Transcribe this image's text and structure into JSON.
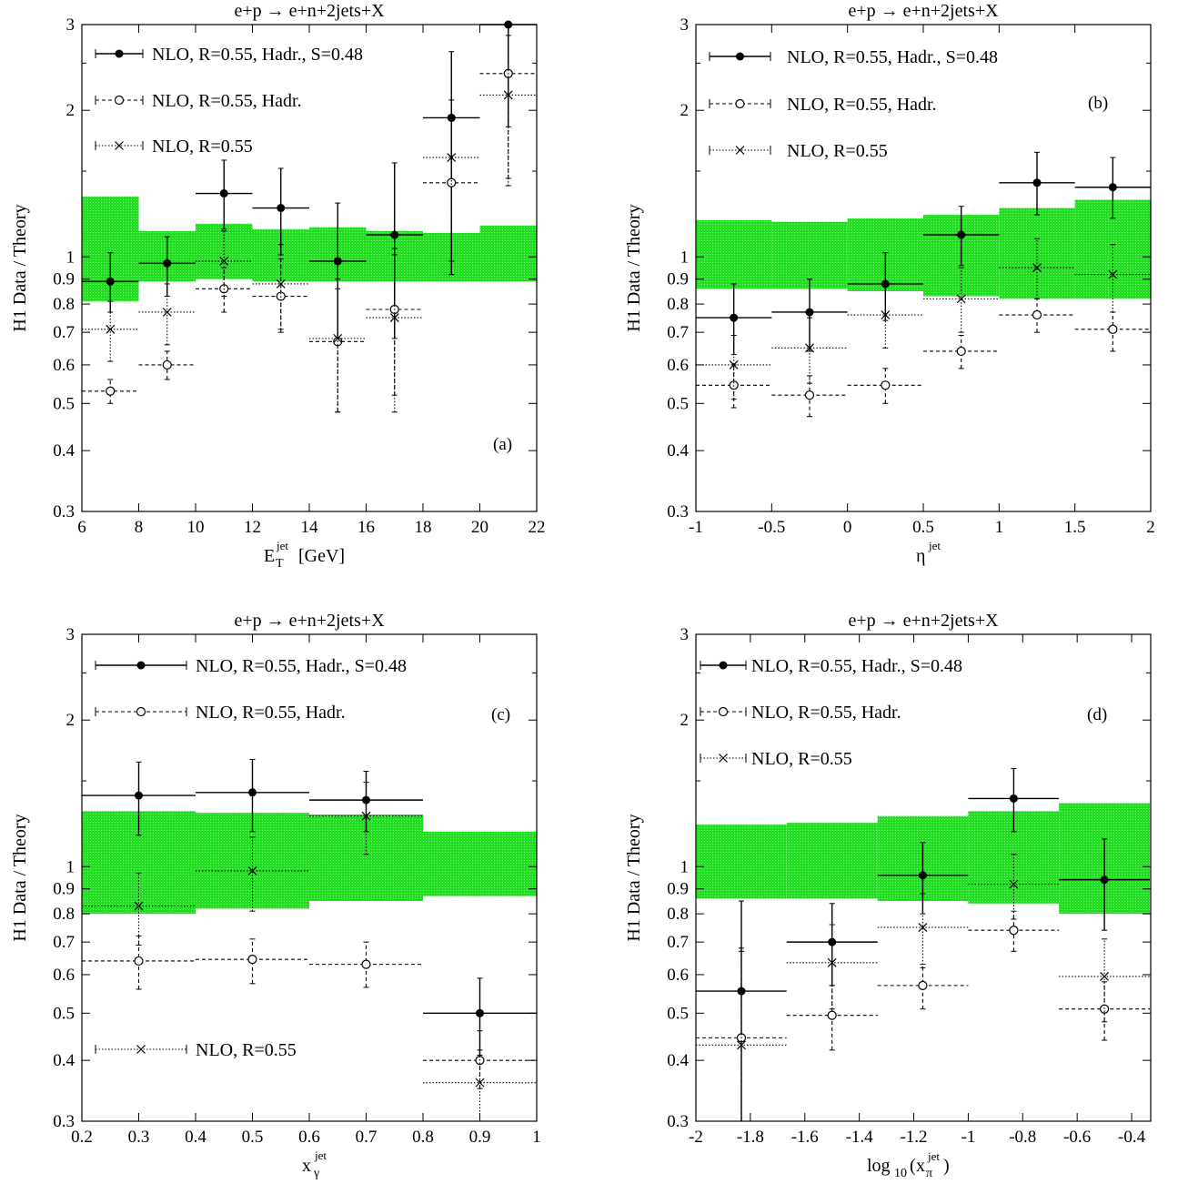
{
  "chart_data": [
    {
      "panel": "(a)",
      "type": "scatter",
      "title": "e+p → e+n+2jets+X",
      "xlabel": {
        "main": "E",
        "sub": "T",
        "sup": "jet",
        "unit": "[GeV]"
      },
      "ylabel": "H1 Data / Theory",
      "xlim": [
        6,
        22
      ],
      "ylim": [
        0.3,
        3
      ],
      "yscale": "log",
      "xticks": [
        "6",
        "8",
        "10",
        "12",
        "14",
        "16",
        "18",
        "20",
        "22"
      ],
      "yticks": [
        "0.3",
        "0.4",
        "0.5",
        "0.6",
        "0.7",
        "0.8",
        "0.9",
        "1",
        "2",
        "3"
      ],
      "band": [
        {
          "x0": 6,
          "x1": 8,
          "lo": 0.81,
          "hi": 1.33
        },
        {
          "x0": 8,
          "x1": 10,
          "lo": 0.89,
          "hi": 1.13
        },
        {
          "x0": 10,
          "x1": 12,
          "lo": 0.9,
          "hi": 1.17
        },
        {
          "x0": 12,
          "x1": 14,
          "lo": 0.89,
          "hi": 1.14
        },
        {
          "x0": 14,
          "x1": 16,
          "lo": 0.89,
          "hi": 1.15
        },
        {
          "x0": 16,
          "x1": 18,
          "lo": 0.89,
          "hi": 1.13
        },
        {
          "x0": 18,
          "x1": 20,
          "lo": 0.89,
          "hi": 1.12
        },
        {
          "x0": 20,
          "x1": 22,
          "lo": 0.89,
          "hi": 1.16
        }
      ],
      "series": [
        {
          "name": "NLO, R=0.55, Hadr., S=0.48",
          "marker": "filled",
          "line": "solid",
          "points": [
            {
              "x": 7,
              "y": 0.89,
              "ylo": 0.77,
              "yhi": 1.02
            },
            {
              "x": 9,
              "y": 0.97,
              "ylo": 0.83,
              "yhi": 1.1
            },
            {
              "x": 11,
              "y": 1.35,
              "ylo": 1.14,
              "yhi": 1.58
            },
            {
              "x": 13,
              "y": 1.26,
              "ylo": 1.01,
              "yhi": 1.52
            },
            {
              "x": 15,
              "y": 0.98,
              "ylo": 0.68,
              "yhi": 1.29
            },
            {
              "x": 17,
              "y": 1.11,
              "ylo": 0.68,
              "yhi": 1.56
            },
            {
              "x": 19,
              "y": 1.93,
              "ylo": 0.92,
              "yhi": 2.64
            },
            {
              "x": 21,
              "y": 3.05,
              "ylo": 1.85,
              "yhi": 3.05
            }
          ]
        },
        {
          "name": "NLO, R=0.55, Hadr.",
          "marker": "open",
          "line": "dashed",
          "points": [
            {
              "x": 7,
              "y": 0.53,
              "ylo": 0.5,
              "yhi": 0.56
            },
            {
              "x": 9,
              "y": 0.6,
              "ylo": 0.56,
              "yhi": 0.64
            },
            {
              "x": 11,
              "y": 0.86,
              "ylo": 0.77,
              "yhi": 0.95
            },
            {
              "x": 13,
              "y": 0.83,
              "ylo": 0.7,
              "yhi": 0.99
            },
            {
              "x": 15,
              "y": 0.67,
              "ylo": 0.48,
              "yhi": 0.86
            },
            {
              "x": 17,
              "y": 0.78,
              "ylo": 0.52,
              "yhi": 1.04
            },
            {
              "x": 19,
              "y": 1.42,
              "ylo": 0.92,
              "yhi": 1.93
            },
            {
              "x": 21,
              "y": 2.38,
              "ylo": 1.45,
              "yhi": 3.05
            }
          ]
        },
        {
          "name": "NLO, R=0.55",
          "marker": "cross",
          "line": "dotted",
          "points": [
            {
              "x": 7,
              "y": 0.71,
              "ylo": 0.61,
              "yhi": 0.81
            },
            {
              "x": 9,
              "y": 0.77,
              "ylo": 0.66,
              "yhi": 0.88
            },
            {
              "x": 11,
              "y": 0.98,
              "ylo": 0.83,
              "yhi": 1.13
            },
            {
              "x": 13,
              "y": 0.88,
              "ylo": 0.71,
              "yhi": 1.06
            },
            {
              "x": 15,
              "y": 0.68,
              "ylo": 0.48,
              "yhi": 0.9
            },
            {
              "x": 17,
              "y": 0.75,
              "ylo": 0.48,
              "yhi": 1.01
            },
            {
              "x": 19,
              "y": 1.6,
              "ylo": 0.98,
              "yhi": 2.1
            },
            {
              "x": 21,
              "y": 2.15,
              "ylo": 1.4,
              "yhi": 2.85
            }
          ]
        }
      ]
    },
    {
      "panel": "(b)",
      "type": "scatter",
      "title": "e+p → e+n+2jets+X",
      "xlabel": {
        "main": "η",
        "sub": "",
        "sup": "jet",
        "unit": ""
      },
      "ylabel": "H1 Data / Theory",
      "xlim": [
        -1,
        2
      ],
      "ylim": [
        0.3,
        3
      ],
      "yscale": "log",
      "xticks": [
        "-1",
        "-0.5",
        "0",
        "0.5",
        "1",
        "1.5",
        "2"
      ],
      "yticks": [
        "0.3",
        "0.4",
        "0.5",
        "0.6",
        "0.7",
        "0.8",
        "0.9",
        "1",
        "2",
        "3"
      ],
      "band": [
        {
          "x0": -1,
          "x1": -0.5,
          "lo": 0.86,
          "hi": 1.19
        },
        {
          "x0": -0.5,
          "x1": 0,
          "lo": 0.86,
          "hi": 1.18
        },
        {
          "x0": 0,
          "x1": 0.5,
          "lo": 0.85,
          "hi": 1.2
        },
        {
          "x0": 0.5,
          "x1": 1,
          "lo": 0.83,
          "hi": 1.22
        },
        {
          "x0": 1,
          "x1": 1.5,
          "lo": 0.82,
          "hi": 1.26
        },
        {
          "x0": 1.5,
          "x1": 2,
          "lo": 0.82,
          "hi": 1.31
        }
      ],
      "series": [
        {
          "name": "NLO, R=0.55, Hadr., S=0.48",
          "marker": "filled",
          "line": "solid",
          "points": [
            {
              "x": -0.75,
              "y": 0.75,
              "ylo": 0.63,
              "yhi": 0.88
            },
            {
              "x": -0.25,
              "y": 0.77,
              "ylo": 0.64,
              "yhi": 0.9
            },
            {
              "x": 0.25,
              "y": 0.88,
              "ylo": 0.74,
              "yhi": 1.02
            },
            {
              "x": 0.75,
              "y": 1.11,
              "ylo": 0.96,
              "yhi": 1.27
            },
            {
              "x": 1.25,
              "y": 1.42,
              "ylo": 1.22,
              "yhi": 1.64
            },
            {
              "x": 1.75,
              "y": 1.39,
              "ylo": 1.2,
              "yhi": 1.6
            }
          ]
        },
        {
          "name": "NLO, R=0.55, Hadr.",
          "marker": "open",
          "line": "dashed",
          "points": [
            {
              "x": -0.75,
              "y": 0.545,
              "ylo": 0.49,
              "yhi": 0.6
            },
            {
              "x": -0.25,
              "y": 0.52,
              "ylo": 0.47,
              "yhi": 0.57
            },
            {
              "x": 0.25,
              "y": 0.545,
              "ylo": 0.5,
              "yhi": 0.59
            },
            {
              "x": 0.75,
              "y": 0.64,
              "ylo": 0.59,
              "yhi": 0.69
            },
            {
              "x": 1.25,
              "y": 0.76,
              "ylo": 0.7,
              "yhi": 0.82
            },
            {
              "x": 1.75,
              "y": 0.71,
              "ylo": 0.64,
              "yhi": 0.77
            }
          ]
        },
        {
          "name": "NLO, R=0.55",
          "marker": "cross",
          "line": "dotted",
          "points": [
            {
              "x": -0.75,
              "y": 0.6,
              "ylo": 0.51,
              "yhi": 0.69
            },
            {
              "x": -0.25,
              "y": 0.65,
              "ylo": 0.55,
              "yhi": 0.75
            },
            {
              "x": 0.25,
              "y": 0.76,
              "ylo": 0.65,
              "yhi": 0.87
            },
            {
              "x": 0.75,
              "y": 0.82,
              "ylo": 0.7,
              "yhi": 0.95
            },
            {
              "x": 1.25,
              "y": 0.95,
              "ylo": 0.82,
              "yhi": 1.09
            },
            {
              "x": 1.75,
              "y": 0.92,
              "ylo": 0.77,
              "yhi": 1.06
            }
          ]
        }
      ]
    },
    {
      "panel": "(c)",
      "type": "scatter",
      "title": "e+p → e+n+2jets+X",
      "xlabel": {
        "main": "x",
        "sub": "γ",
        "sup": "jet",
        "unit": ""
      },
      "ylabel": "H1 Data / Theory",
      "xlim": [
        0.2,
        1
      ],
      "ylim": [
        0.3,
        3
      ],
      "yscale": "log",
      "xticks": [
        "0.2",
        "0.3",
        "0.4",
        "0.5",
        "0.6",
        "0.7",
        "0.8",
        "0.9",
        "1"
      ],
      "yticks": [
        "0.3",
        "0.4",
        "0.5",
        "0.6",
        "0.7",
        "0.8",
        "0.9",
        "1",
        "2",
        "3"
      ],
      "band": [
        {
          "x0": 0.2,
          "x1": 0.4,
          "lo": 0.8,
          "hi": 1.3
        },
        {
          "x0": 0.4,
          "x1": 0.6,
          "lo": 0.82,
          "hi": 1.29
        },
        {
          "x0": 0.6,
          "x1": 0.8,
          "lo": 0.85,
          "hi": 1.28
        },
        {
          "x0": 0.8,
          "x1": 1.0,
          "lo": 0.87,
          "hi": 1.18
        }
      ],
      "series": [
        {
          "name": "NLO, R=0.55, Hadr., S=0.48",
          "marker": "filled",
          "line": "solid",
          "points": [
            {
              "x": 0.3,
              "y": 1.4,
              "ylo": 1.16,
              "yhi": 1.64
            },
            {
              "x": 0.5,
              "y": 1.42,
              "ylo": 1.18,
              "yhi": 1.66
            },
            {
              "x": 0.7,
              "y": 1.37,
              "ylo": 1.18,
              "yhi": 1.57
            },
            {
              "x": 0.9,
              "y": 0.5,
              "ylo": 0.41,
              "yhi": 0.59
            }
          ]
        },
        {
          "name": "NLO, R=0.55, Hadr.",
          "marker": "open",
          "line": "dashed",
          "points": [
            {
              "x": 0.3,
              "y": 0.64,
              "ylo": 0.56,
              "yhi": 0.72
            },
            {
              "x": 0.5,
              "y": 0.645,
              "ylo": 0.575,
              "yhi": 0.71
            },
            {
              "x": 0.7,
              "y": 0.63,
              "ylo": 0.565,
              "yhi": 0.7
            },
            {
              "x": 0.9,
              "y": 0.4,
              "ylo": 0.35,
              "yhi": 0.46
            }
          ]
        },
        {
          "name": "NLO, R=0.55",
          "marker": "cross",
          "line": "dotted",
          "points": [
            {
              "x": 0.3,
              "y": 0.83,
              "ylo": 0.69,
              "yhi": 0.97
            },
            {
              "x": 0.5,
              "y": 0.98,
              "ylo": 0.81,
              "yhi": 1.15
            },
            {
              "x": 0.7,
              "y": 1.27,
              "ylo": 1.06,
              "yhi": 1.49
            },
            {
              "x": 0.9,
              "y": 0.36,
              "ylo": 0.3,
              "yhi": 0.42
            }
          ]
        }
      ]
    },
    {
      "panel": "(d)",
      "type": "scatter",
      "title": "e+p → e+n+2jets+X",
      "xlabel": {
        "main": "log",
        "sub": "10",
        "sup": "jet",
        "unit": ""
      },
      "ylabel": "H1 Data / Theory",
      "xlim": [
        -2,
        -0.33
      ],
      "ylim": [
        0.3,
        3
      ],
      "yscale": "log",
      "xticks": [
        "-2",
        "-1.8",
        "-1.6",
        "-1.4",
        "-1.2",
        "-1",
        "-0.8",
        "-0.6",
        "-0.4"
      ],
      "yticks": [
        "0.3",
        "0.4",
        "0.5",
        "0.6",
        "0.7",
        "0.8",
        "0.9",
        "1",
        "2",
        "3"
      ],
      "band": [
        {
          "x0": -2,
          "x1": -1.667,
          "lo": 0.86,
          "hi": 1.22
        },
        {
          "x0": -1.667,
          "x1": -1.333,
          "lo": 0.86,
          "hi": 1.23
        },
        {
          "x0": -1.333,
          "x1": -1.0,
          "lo": 0.85,
          "hi": 1.27
        },
        {
          "x0": -1.0,
          "x1": -0.667,
          "lo": 0.84,
          "hi": 1.3
        },
        {
          "x0": -0.667,
          "x1": -0.333,
          "lo": 0.8,
          "hi": 1.35
        }
      ],
      "series": [
        {
          "name": "NLO, R=0.55, Hadr., S=0.48",
          "marker": "filled",
          "line": "solid",
          "points": [
            {
              "x": -1.833,
              "y": 0.555,
              "ylo": 0.3,
              "yhi": 0.85
            },
            {
              "x": -1.5,
              "y": 0.7,
              "ylo": 0.57,
              "yhi": 0.84
            },
            {
              "x": -1.167,
              "y": 0.96,
              "ylo": 0.8,
              "yhi": 1.12
            },
            {
              "x": -0.833,
              "y": 1.38,
              "ylo": 1.18,
              "yhi": 1.59
            },
            {
              "x": -0.5,
              "y": 0.94,
              "ylo": 0.74,
              "yhi": 1.14
            }
          ]
        },
        {
          "name": "NLO, R=0.55, Hadr.",
          "marker": "open",
          "line": "dashed",
          "points": [
            {
              "x": -1.833,
              "y": 0.445,
              "ylo": 0.3,
              "yhi": 0.68
            },
            {
              "x": -1.5,
              "y": 0.495,
              "ylo": 0.42,
              "yhi": 0.57
            },
            {
              "x": -1.167,
              "y": 0.57,
              "ylo": 0.51,
              "yhi": 0.63
            },
            {
              "x": -0.833,
              "y": 0.74,
              "ylo": 0.67,
              "yhi": 0.81
            },
            {
              "x": -0.5,
              "y": 0.51,
              "ylo": 0.44,
              "yhi": 0.58
            }
          ]
        },
        {
          "name": "NLO, R=0.55",
          "marker": "cross",
          "line": "dotted",
          "points": [
            {
              "x": -1.833,
              "y": 0.43,
              "ylo": 0.3,
              "yhi": 0.67
            },
            {
              "x": -1.5,
              "y": 0.635,
              "ylo": 0.51,
              "yhi": 0.76
            },
            {
              "x": -1.167,
              "y": 0.75,
              "ylo": 0.62,
              "yhi": 0.88
            },
            {
              "x": -0.833,
              "y": 0.92,
              "ylo": 0.78,
              "yhi": 1.06
            },
            {
              "x": -0.5,
              "y": 0.595,
              "ylo": 0.48,
              "yhi": 0.71
            }
          ]
        }
      ]
    }
  ],
  "xlabel_d_inner": {
    "x": "x",
    "sub": "π",
    "sup": "jet"
  },
  "colors": {
    "band": "#22dd22",
    "ink": "#000000"
  }
}
